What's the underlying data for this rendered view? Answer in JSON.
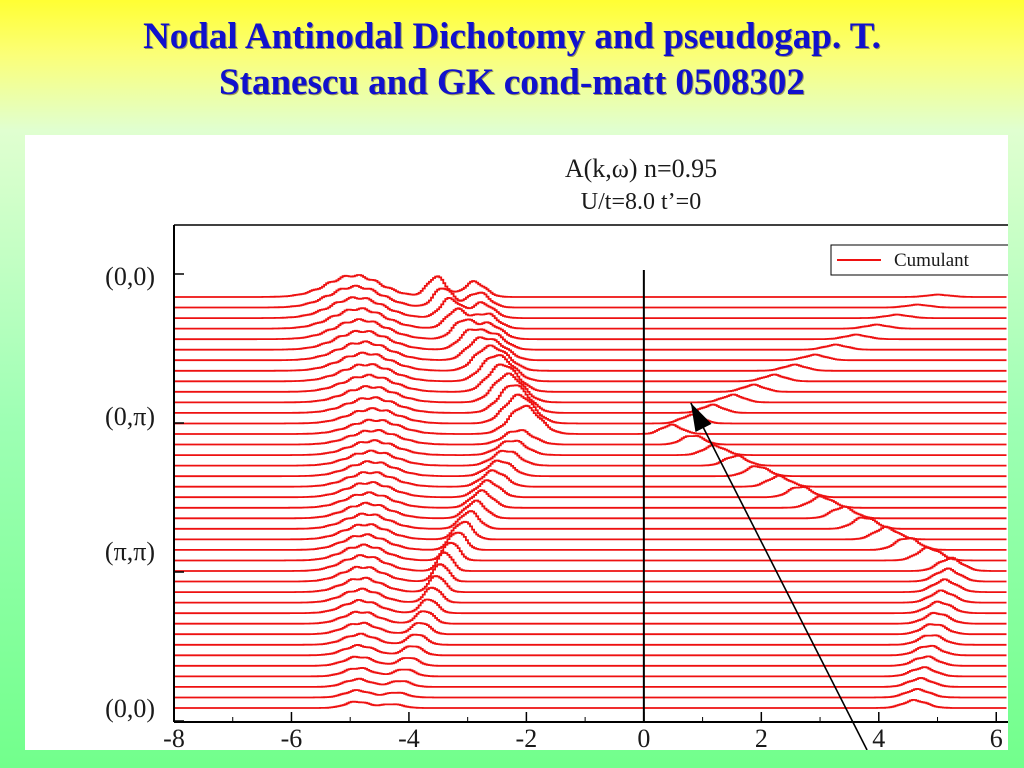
{
  "slide": {
    "title_line1": "Nodal Antinodal Dichotomy and pseudogap. T.",
    "title_line2": "Stanescu and GK cond-matt 0508302"
  },
  "chart_data": {
    "type": "line",
    "title": "A(k,ω) n=0.95",
    "subtitle": "U/t=8.0 t’=0",
    "xlabel": "",
    "ylabel": "",
    "xlim": [
      -8,
      6.2
    ],
    "x_ticks": [
      -8,
      -6,
      -4,
      -2,
      0,
      2,
      4,
      6
    ],
    "x_tick_labels": [
      "-8",
      "-6",
      "-4",
      "-2",
      "0",
      "2",
      "4",
      "6"
    ],
    "y_tick_labels": [
      "(0,0)",
      "(0,π)",
      "(π,π)",
      "(0,0)"
    ],
    "legend": {
      "entries": [
        "Cumulant"
      ],
      "position": "top-right"
    },
    "series_color": "#ee1111",
    "curve_count": 40,
    "vertical_line_x": 0,
    "arrow": {
      "from": [
        3.8,
        -0.3
      ],
      "to": [
        0.8,
        2.0
      ]
    },
    "momentum_path": [
      {
        "label": "(0,0)",
        "peaks": [
          [
            -4.95,
            1.7,
            0.45
          ],
          [
            -3.55,
            1.6,
            0.15
          ],
          [
            -2.9,
            1.2,
            0.18
          ]
        ],
        "upper_peak": [
          5.0,
          0.18,
          0.2
        ]
      },
      {
        "label": "(0,π)",
        "peaks": [
          [
            -4.6,
            1.1,
            0.4
          ],
          [
            -2.05,
            1.1,
            0.25
          ]
        ],
        "upper_peak": [
          0.45,
          0.7,
          0.18
        ]
      },
      {
        "label": "(π,π)",
        "peaks": [
          [
            -4.8,
            1.2,
            0.35
          ],
          [
            -3.4,
            1.5,
            0.12
          ]
        ],
        "upper_peak": [
          5.2,
          1.0,
          0.2
        ]
      },
      {
        "label": "(0,0)",
        "peaks": [
          [
            -4.9,
            0.5,
            0.2
          ],
          [
            -4.3,
            0.3,
            0.18
          ]
        ],
        "upper_peak": [
          4.6,
          0.6,
          0.2
        ]
      }
    ]
  }
}
